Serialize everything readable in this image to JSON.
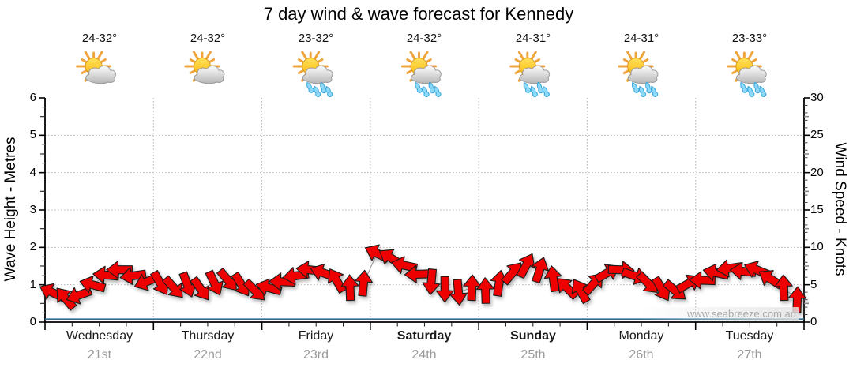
{
  "title": "7 day wind & wave forecast for Kennedy",
  "watermark": "www.seabreeze.com.au",
  "days": [
    {
      "name": "Wednesday",
      "date": "21st",
      "temp": "24-32°",
      "icon": "sun-cloud",
      "bold": false
    },
    {
      "name": "Thursday",
      "date": "22nd",
      "temp": "24-32°",
      "icon": "sun-cloud",
      "bold": false
    },
    {
      "name": "Friday",
      "date": "23rd",
      "temp": "23-32°",
      "icon": "sun-cloud-rain",
      "bold": false
    },
    {
      "name": "Saturday",
      "date": "24th",
      "temp": "24-32°",
      "icon": "sun-cloud-rain",
      "bold": true
    },
    {
      "name": "Sunday",
      "date": "25th",
      "temp": "24-31°",
      "icon": "sun-cloud-rain",
      "bold": true
    },
    {
      "name": "Monday",
      "date": "26th",
      "temp": "24-31°",
      "icon": "sun-cloud-rain",
      "bold": false
    },
    {
      "name": "Tuesday",
      "date": "27th",
      "temp": "23-33°",
      "icon": "sun-cloud-rain",
      "bold": false
    }
  ],
  "left_axis": {
    "label": "Wave Height - Metres",
    "ticks": [
      0,
      1,
      2,
      3,
      4,
      5,
      6
    ]
  },
  "right_axis": {
    "label": "Wind Speed - Knots",
    "ticks": [
      0,
      5,
      10,
      15,
      20,
      25,
      30
    ]
  },
  "colors": {
    "arrow_fill": "#ee0000",
    "arrow_outline": "#1c1c1c",
    "connector": "#999999",
    "wave_line": "#2e6e8e",
    "grid": "#b3b3b3",
    "axis": "#000000",
    "minor_tick_gray": "#8a8a8a",
    "date_text": "#9a9a9a",
    "watermark_text": "#a9a9a9"
  },
  "chart_data": {
    "type": "line",
    "title": "7 day wind & wave forecast for Kennedy",
    "x_categories": [
      "Wednesday 21st",
      "Thursday 22nd",
      "Friday 23rd",
      "Saturday 24th",
      "Sunday 25th",
      "Monday 26th",
      "Tuesday 27th"
    ],
    "samples_per_day": 8,
    "y_left": {
      "label": "Wave Height - Metres",
      "range": [
        0,
        6
      ],
      "gridlines_at": [
        1,
        2,
        3,
        4,
        5
      ]
    },
    "y_right": {
      "label": "Wind Speed - Knots",
      "range": [
        0,
        30
      ]
    },
    "grid": "dotted horizontal at each metre, dotted vertical at day boundaries",
    "daily_temps_c": [
      [
        24,
        32
      ],
      [
        24,
        32
      ],
      [
        23,
        32
      ],
      [
        24,
        32
      ],
      [
        24,
        31
      ],
      [
        24,
        31
      ],
      [
        23,
        33
      ]
    ],
    "daily_weather": [
      "partly-cloudy",
      "partly-cloudy",
      "rain-showers",
      "rain-showers",
      "rain-showers",
      "rain-showers",
      "rain-showers"
    ],
    "series": [
      {
        "name": "Wind speed (knots, red arrows, right axis)",
        "axis": "right",
        "values": [
          4.0,
          3.2,
          3.6,
          5.0,
          6.3,
          7.0,
          6.2,
          5.4,
          5.2,
          4.6,
          5.0,
          4.4,
          5.2,
          5.6,
          5.0,
          4.2,
          4.6,
          5.4,
          6.2,
          7.0,
          6.6,
          5.6,
          4.6,
          5.2,
          9.2,
          8.6,
          7.6,
          6.4,
          5.4,
          4.4,
          4.0,
          4.6,
          4.2,
          5.2,
          6.6,
          7.6,
          7.0,
          5.8,
          4.6,
          4.2,
          5.2,
          6.6,
          7.0,
          6.2,
          5.2,
          4.4,
          4.2,
          5.2,
          5.6,
          6.6,
          7.2,
          6.8,
          7.0,
          5.8,
          4.6,
          3.0
        ]
      },
      {
        "name": "Wind direction (deg clockwise from east, arrow heading)",
        "values": [
          205,
          230,
          160,
          195,
          185,
          180,
          172,
          158,
          60,
          48,
          70,
          55,
          65,
          50,
          58,
          45,
          195,
          182,
          172,
          186,
          200,
          240,
          268,
          275,
          205,
          212,
          192,
          178,
          95,
          90,
          85,
          272,
          268,
          278,
          310,
          298,
          288,
          262,
          225,
          240,
          312,
          330,
          2,
          18,
          45,
          60,
          40,
          330,
          182,
          192,
          172,
          186,
          202,
          212,
          268,
          272
        ]
      },
      {
        "name": "Wave height (m, flat blue line, left axis)",
        "axis": "left",
        "values_constant": 0.07
      }
    ]
  }
}
